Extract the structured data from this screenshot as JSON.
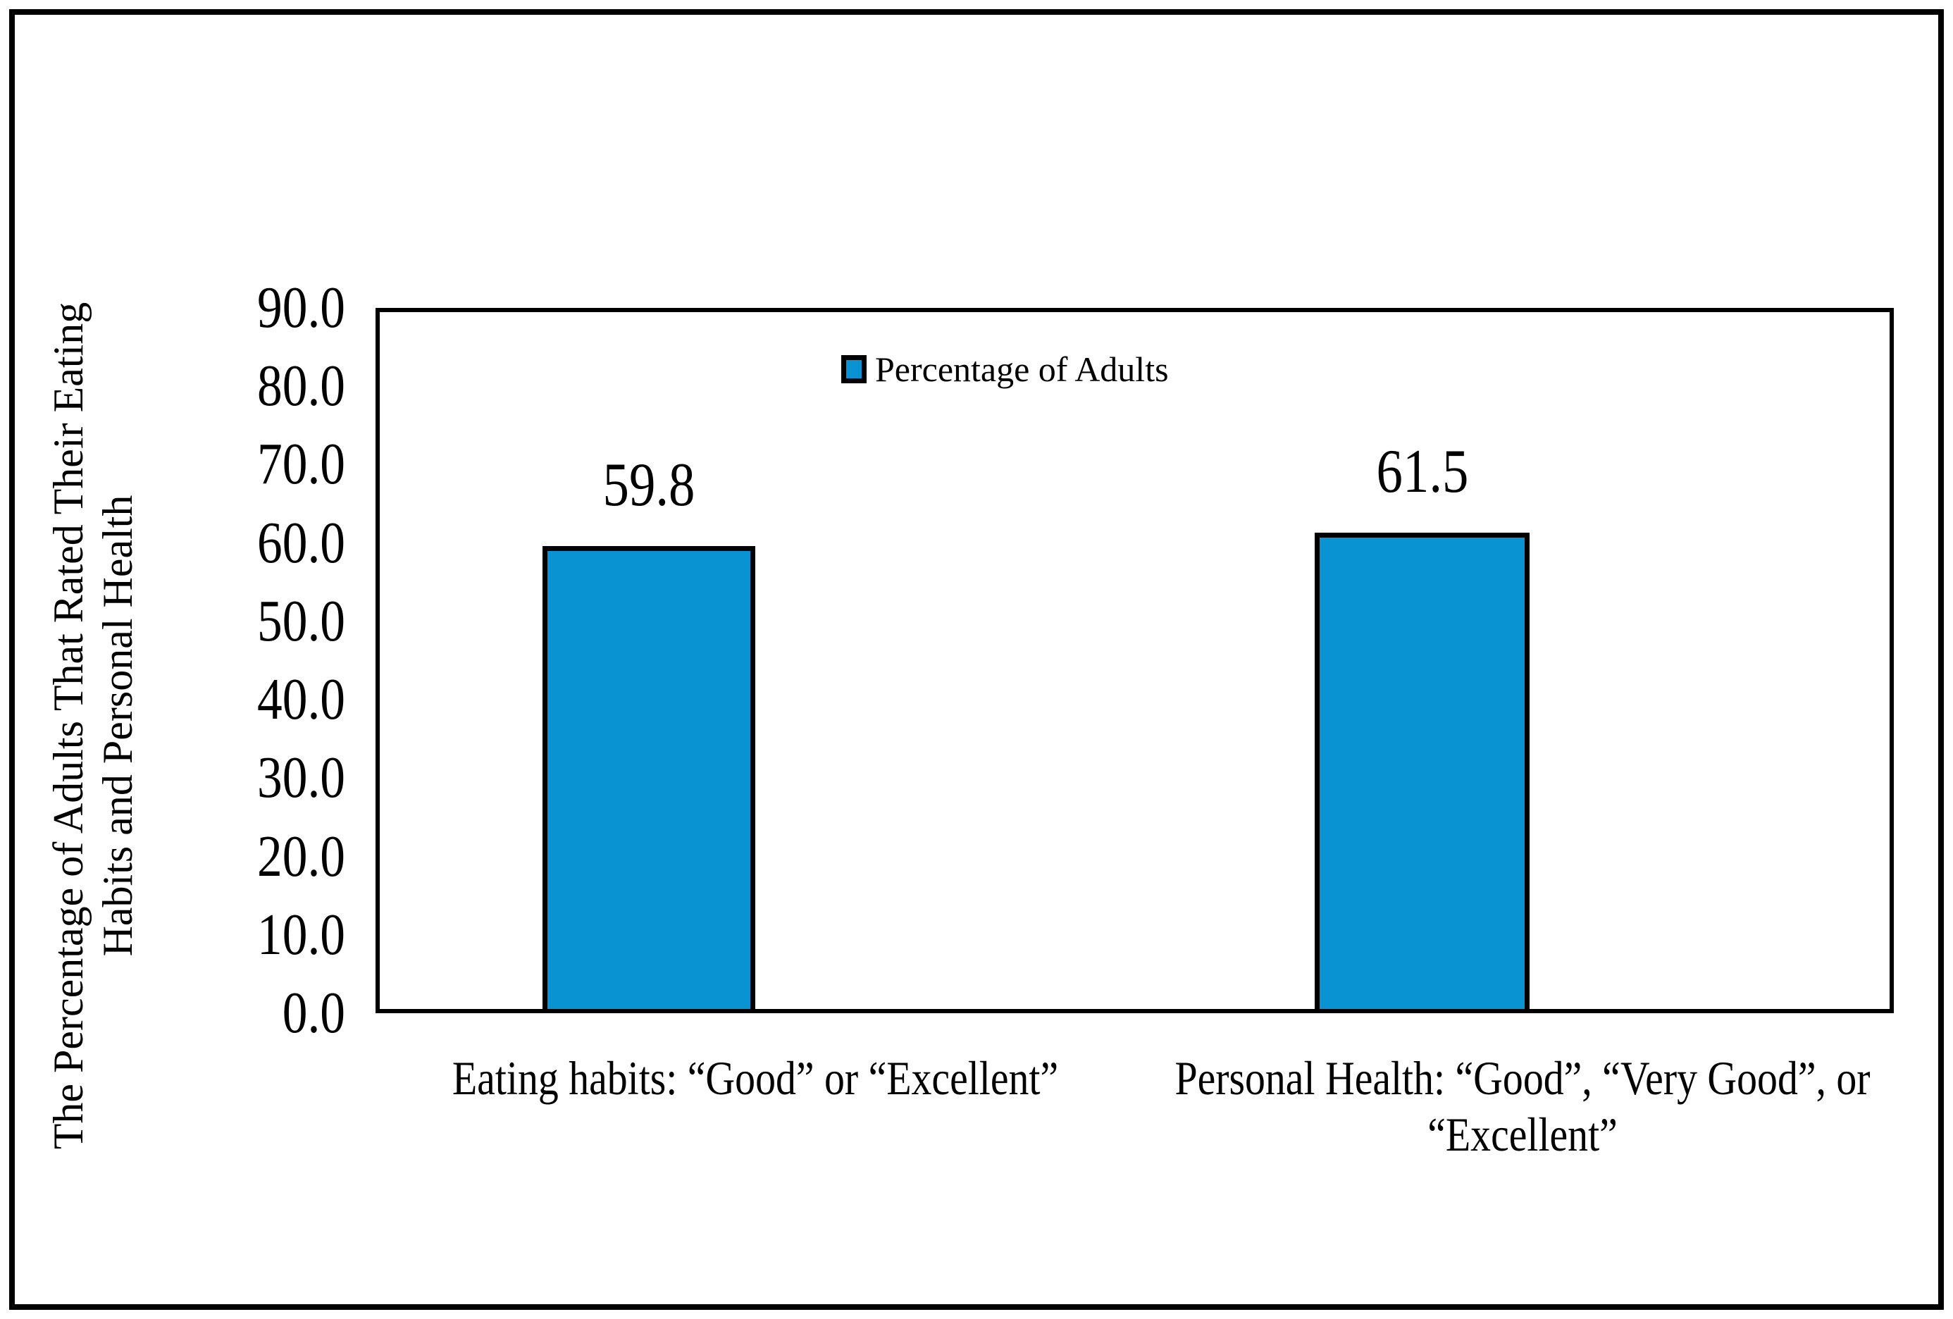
{
  "legend": {
    "label": "Percentage of Adults"
  },
  "y_axis": {
    "title_line1": "The Percentage of Adults That Rated Their Eating",
    "title_line2": "Habits and Personal Health",
    "ticks": [
      "90.0",
      "80.0",
      "70.0",
      "60.0",
      "50.0",
      "40.0",
      "30.0",
      "20.0",
      "10.0",
      "0.0"
    ]
  },
  "x_axis": {
    "category1": "Eating habits: “Good” or “Excellent”",
    "category2_line1": "Personal Health: “Good”, “Very Good”, or",
    "category2_line2": "“Excellent”"
  },
  "values": {
    "bar1": "59.8",
    "bar2": "61.5"
  },
  "colors": {
    "bar_fill": "#0a93d2",
    "line": "#000000"
  },
  "chart_data": {
    "type": "bar",
    "categories": [
      "Eating habits: “Good” or “Excellent”",
      "Personal Health: “Good”, “Very Good”, or “Excellent”"
    ],
    "values": [
      59.8,
      61.5
    ],
    "data_labels": [
      "59.8",
      "61.5"
    ],
    "series_name": "Percentage of Adults",
    "title": "",
    "xlabel": "",
    "ylabel": "The Percentage of Adults That Rated Their Eating Habits and Personal Health",
    "ylim": [
      0,
      90
    ],
    "ytick_step": 10,
    "ytick_format": "one-decimal",
    "grid": false,
    "legend_position": "top-center-inside",
    "bar_color": "#0a93d2",
    "bar_border_color": "#000000",
    "plot_border": true,
    "figure_border": true
  }
}
